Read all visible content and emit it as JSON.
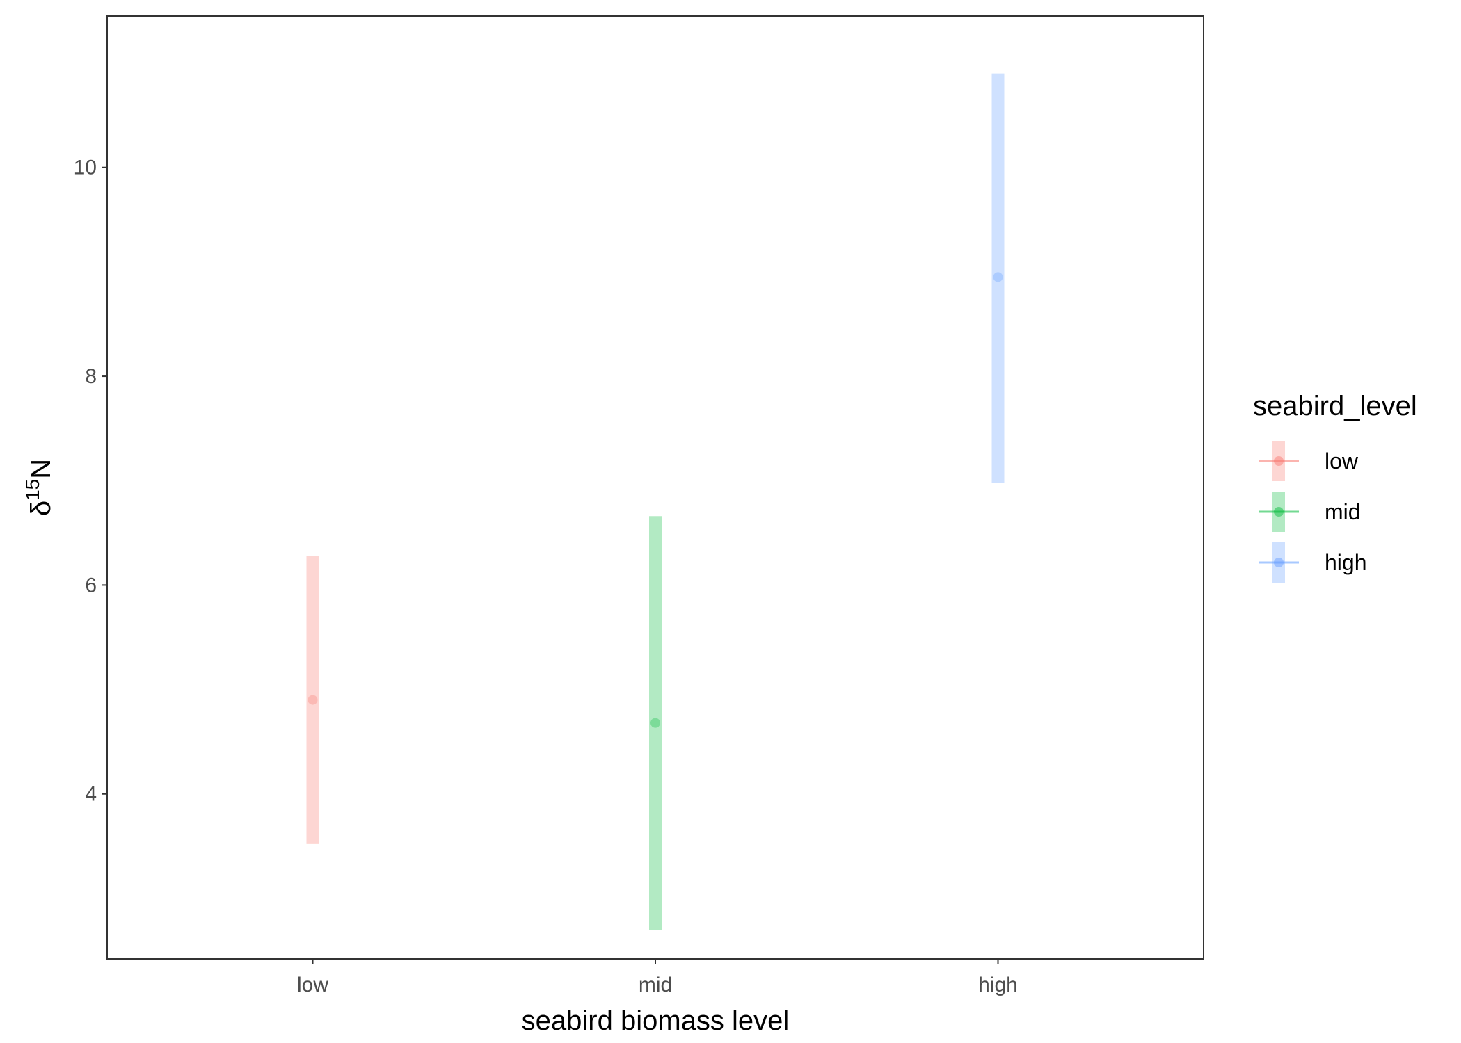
{
  "chart_data": {
    "type": "scatter",
    "subtype": "pointrange",
    "categories": [
      "low",
      "mid",
      "high"
    ],
    "series": [
      {
        "name": "low",
        "color": "#F8766D",
        "estimate": 4.9,
        "lower": 3.52,
        "upper": 6.28
      },
      {
        "name": "mid",
        "color": "#00BA38",
        "estimate": 4.68,
        "lower": 2.7,
        "upper": 6.66
      },
      {
        "name": "high",
        "color": "#619CFF",
        "estimate": 8.95,
        "lower": 6.98,
        "upper": 10.9
      }
    ],
    "yticks": [
      4,
      6,
      8,
      10
    ],
    "ylim": [
      2.42,
      11.45
    ],
    "xlabel": "seabird biomass level",
    "ylabel": {
      "symbol": "δ",
      "superscript": "15",
      "element": "N"
    },
    "legend": {
      "title": "seabird_level",
      "position": "right"
    },
    "grid": false
  }
}
